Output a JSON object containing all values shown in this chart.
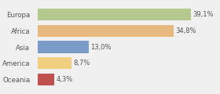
{
  "categories": [
    "Europa",
    "Africa",
    "Asia",
    "America",
    "Oceania"
  ],
  "values": [
    39.1,
    34.8,
    13.0,
    8.7,
    4.3
  ],
  "labels": [
    "39,1%",
    "34,8%",
    "13,0%",
    "8,7%",
    "4,3%"
  ],
  "colors": [
    "#b5c98e",
    "#e8b97e",
    "#7b9bc8",
    "#f0d080",
    "#c0504d"
  ],
  "background_color": "#f0f0f0",
  "bar_height": 0.72,
  "xlim": [
    0,
    46
  ],
  "label_fontsize": 6.0,
  "tick_fontsize": 6.2
}
